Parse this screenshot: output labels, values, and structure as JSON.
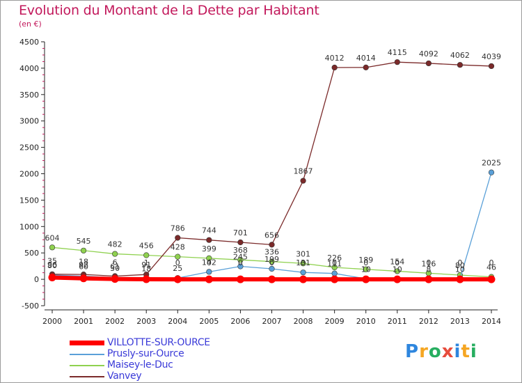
{
  "title": "Evolution du Montant de la Dette par Habitant",
  "unit": "(en €)",
  "logo": {
    "letters": [
      "P",
      "r",
      "o",
      "x",
      "i",
      "t",
      "i"
    ],
    "colors": [
      "#2e86de",
      "#f5a623",
      "#27ae60",
      "#e74c3c",
      "#2e86de",
      "#f5a623",
      "#27ae60"
    ]
  },
  "chart_data": {
    "type": "line",
    "title": "Evolution du Montant de la Dette par Habitant",
    "ylabel": "(en €)",
    "x": [
      "2000",
      "2001",
      "2002",
      "2003",
      "2004",
      "2005",
      "2006",
      "2007",
      "2008",
      "2009",
      "2010",
      "2011",
      "2012",
      "2013",
      "2014"
    ],
    "yticks": [
      "-500",
      "0",
      "500",
      "1000",
      "1500",
      "2000",
      "2500",
      "3000",
      "3500",
      "4000",
      "4500"
    ],
    "ylim": [
      -500,
      4500
    ],
    "grid": false,
    "legend_position": "bottom-left",
    "series": [
      {
        "name": "VILLOTTE-SUR-OURCE",
        "color": "#ff0000",
        "values": [
          35,
          18,
          6,
          1,
          0,
          0,
          0,
          0,
          0,
          0,
          0,
          0,
          0,
          0,
          0
        ],
        "labels": [
          "35",
          "18",
          "6",
          "1",
          "0",
          "0",
          "0",
          "0",
          "0",
          "0",
          "0",
          "0",
          "0",
          "0",
          "0"
        ]
      },
      {
        "name": "Prusly-sur-Ource",
        "color": "#5aa0d8",
        "values": [
          80,
          60,
          30,
          18,
          25,
          142,
          245,
          199,
          131,
          111,
          10,
          10,
          8,
          10,
          2025
        ],
        "labels": [
          "80",
          "60",
          "30",
          "18",
          "25",
          "142",
          "245",
          "199",
          "131",
          "111",
          "10",
          "10",
          "8",
          "10",
          "2025"
        ]
      },
      {
        "name": "Maisey-le-Duc",
        "color": "#8fd14f",
        "values": [
          604,
          545,
          482,
          456,
          428,
          399,
          368,
          336,
          301,
          226,
          189,
          154,
          116,
          80,
          46
        ],
        "labels": [
          "604",
          "545",
          "482",
          "456",
          "428",
          "399",
          "368",
          "336",
          "301",
          "226",
          "189",
          "154",
          "116",
          "80",
          "46"
        ]
      },
      {
        "name": "Vanvey",
        "color": "#7b2a2a",
        "values": [
          96,
          92,
          61,
          91,
          786,
          744,
          701,
          656,
          1867,
          4012,
          4014,
          4115,
          4092,
          4062,
          4039
        ],
        "labels": [
          "96",
          "92",
          "61",
          "91",
          "786",
          "744",
          "701",
          "656",
          "1867",
          "4012",
          "4014",
          "4115",
          "4092",
          "4062",
          "4039"
        ]
      }
    ]
  }
}
